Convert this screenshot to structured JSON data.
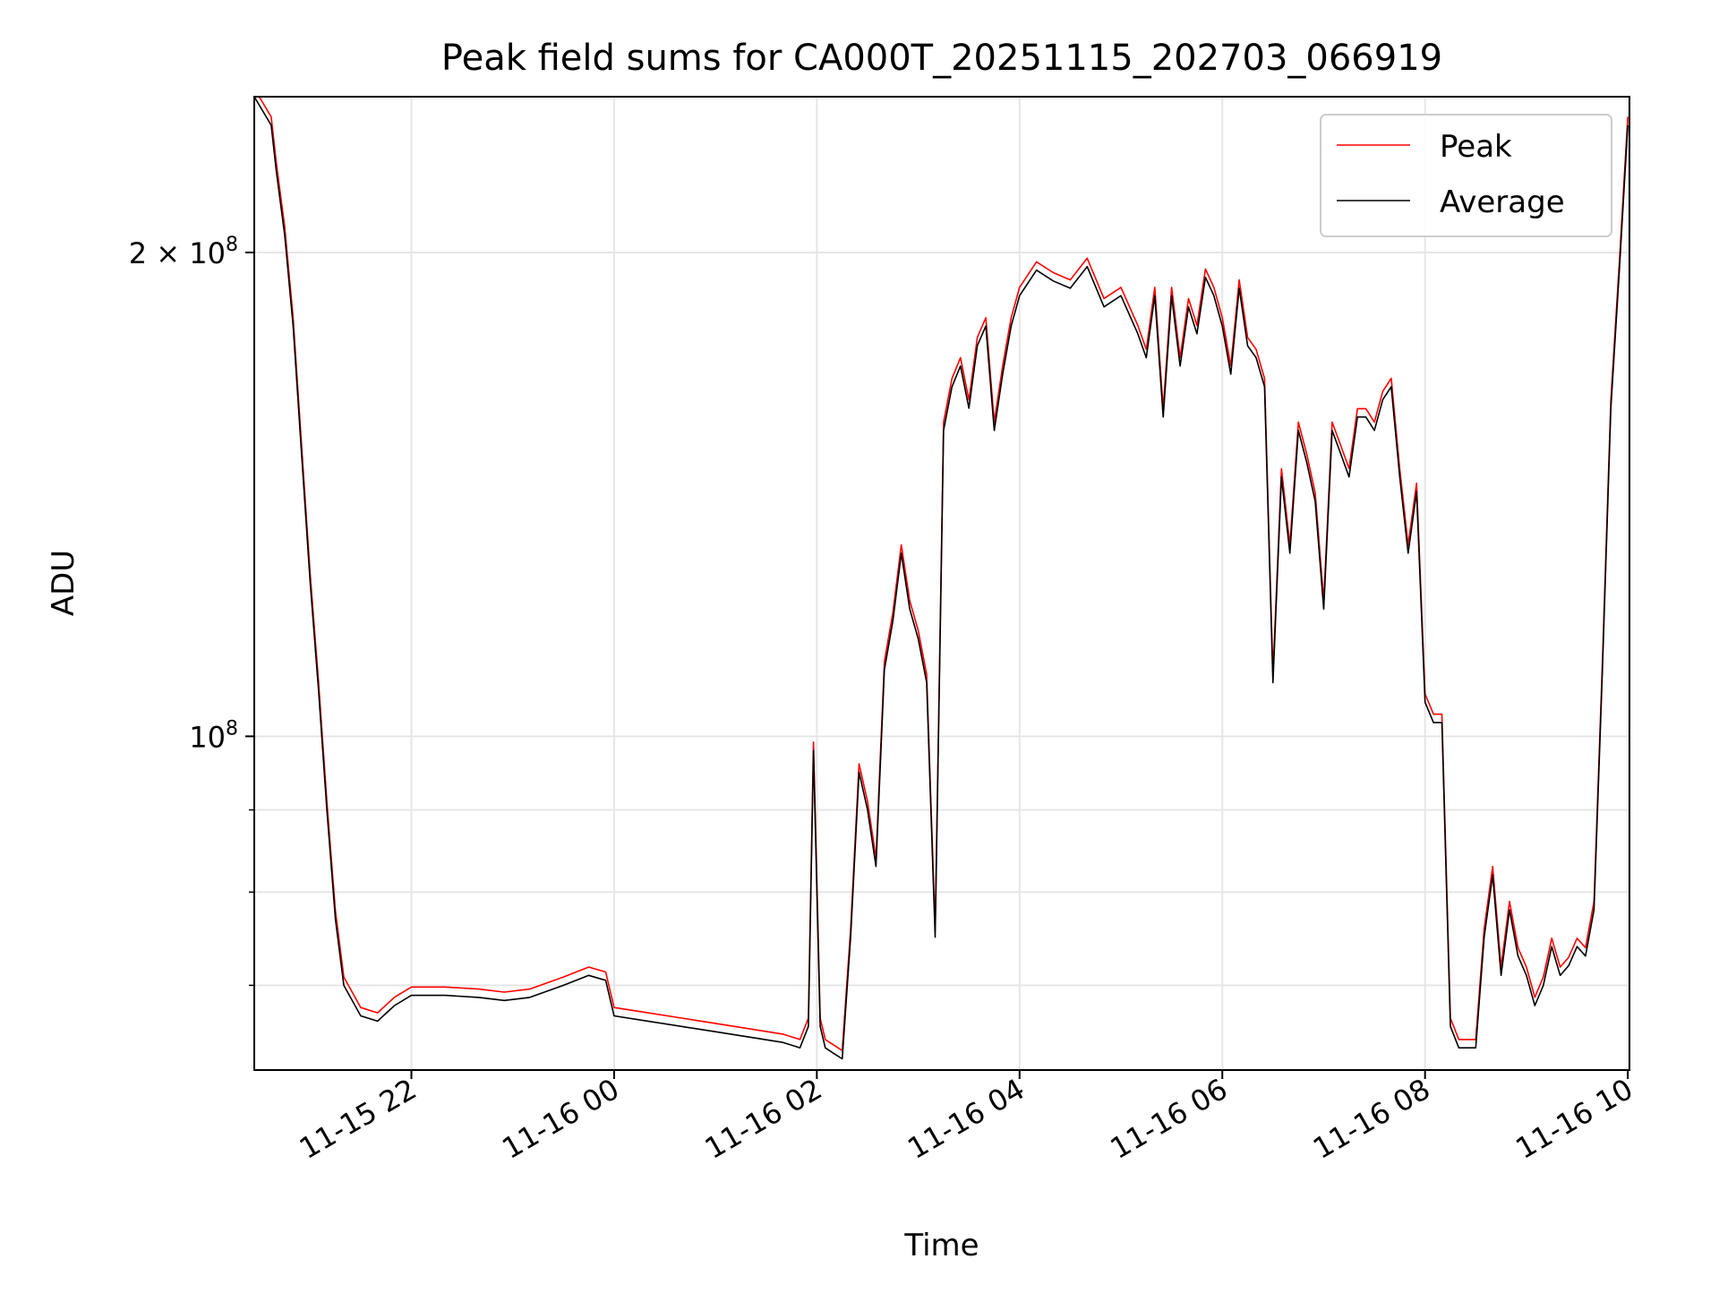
{
  "chart_data": {
    "type": "line",
    "title": "Peak field sums for CA000T_20251115_202703_066919",
    "xlabel": "Time",
    "ylabel": "ADU",
    "y_scale": "log",
    "ylim": [
      62000000,
      250000000
    ],
    "xlim": [
      "2025-11-15 20:27",
      "2025-11-16 10:01"
    ],
    "grid": true,
    "legend_position": "top-right",
    "x_tick_values": [
      "2025-11-15 22:00",
      "2025-11-16 00:00",
      "2025-11-16 02:00",
      "2025-11-16 04:00",
      "2025-11-16 06:00",
      "2025-11-16 08:00",
      "2025-11-16 10:00"
    ],
    "x_tick_labels": [
      "11-15 22",
      "11-16 00",
      "11-16 02",
      "11-16 04",
      "11-16 06",
      "11-16 08",
      "11-16 10"
    ],
    "y_ticks": [
      {
        "value": 100000000,
        "base": "10",
        "exp": "8"
      },
      {
        "value": 200000000,
        "mant": "2",
        "base": "10",
        "exp": "8"
      }
    ],
    "y_minor_ticks": [
      70000000,
      80000000,
      90000000
    ],
    "series": [
      {
        "name": "Peak",
        "color": "#ff0000",
        "offset": 0.012,
        "x": [
          "2025-11-15 20:27",
          "2025-11-15 20:37",
          "2025-11-15 20:40",
          "2025-11-15 20:45",
          "2025-11-15 20:50",
          "2025-11-15 20:55",
          "2025-11-15 21:00",
          "2025-11-15 21:05",
          "2025-11-15 21:10",
          "2025-11-15 21:15",
          "2025-11-15 21:20",
          "2025-11-15 21:30",
          "2025-11-15 21:40",
          "2025-11-15 21:50",
          "2025-11-15 22:00",
          "2025-11-15 22:20",
          "2025-11-15 22:40",
          "2025-11-15 22:55",
          "2025-11-15 23:10",
          "2025-11-15 23:30",
          "2025-11-15 23:45",
          "2025-11-15 23:55",
          "2025-11-16 00:00",
          "2025-11-16 00:20",
          "2025-11-16 00:40",
          "2025-11-16 01:00",
          "2025-11-16 01:20",
          "2025-11-16 01:40",
          "2025-11-16 01:50",
          "2025-11-16 01:55",
          "2025-11-16 01:58",
          "2025-11-16 02:02",
          "2025-11-16 02:05",
          "2025-11-16 02:10",
          "2025-11-16 02:15",
          "2025-11-16 02:20",
          "2025-11-16 02:25",
          "2025-11-16 02:30",
          "2025-11-16 02:35",
          "2025-11-16 02:40",
          "2025-11-16 02:45",
          "2025-11-16 02:50",
          "2025-11-16 02:55",
          "2025-11-16 03:00",
          "2025-11-16 03:05",
          "2025-11-16 03:10",
          "2025-11-16 03:15",
          "2025-11-16 03:20",
          "2025-11-16 03:25",
          "2025-11-16 03:30",
          "2025-11-16 03:35",
          "2025-11-16 03:40",
          "2025-11-16 03:45",
          "2025-11-16 03:50",
          "2025-11-16 03:55",
          "2025-11-16 04:00",
          "2025-11-16 04:10",
          "2025-11-16 04:20",
          "2025-11-16 04:30",
          "2025-11-16 04:40",
          "2025-11-16 04:50",
          "2025-11-16 05:00",
          "2025-11-16 05:10",
          "2025-11-16 05:15",
          "2025-11-16 05:20",
          "2025-11-16 05:25",
          "2025-11-16 05:30",
          "2025-11-16 05:35",
          "2025-11-16 05:40",
          "2025-11-16 05:45",
          "2025-11-16 05:50",
          "2025-11-16 05:55",
          "2025-11-16 06:00",
          "2025-11-16 06:05",
          "2025-11-16 06:10",
          "2025-11-16 06:15",
          "2025-11-16 06:20",
          "2025-11-16 06:25",
          "2025-11-16 06:30",
          "2025-11-16 06:35",
          "2025-11-16 06:40",
          "2025-11-16 06:45",
          "2025-11-16 06:50",
          "2025-11-16 06:55",
          "2025-11-16 07:00",
          "2025-11-16 07:05",
          "2025-11-16 07:10",
          "2025-11-16 07:15",
          "2025-11-16 07:20",
          "2025-11-16 07:25",
          "2025-11-16 07:30",
          "2025-11-16 07:35",
          "2025-11-16 07:40",
          "2025-11-16 07:45",
          "2025-11-16 07:50",
          "2025-11-16 07:55",
          "2025-11-16 08:00",
          "2025-11-16 08:05",
          "2025-11-16 08:10",
          "2025-11-16 08:15",
          "2025-11-16 08:20",
          "2025-11-16 08:30",
          "2025-11-16 08:35",
          "2025-11-16 08:40",
          "2025-11-16 08:45",
          "2025-11-16 08:50",
          "2025-11-16 08:55",
          "2025-11-16 09:00",
          "2025-11-16 09:05",
          "2025-11-16 09:10",
          "2025-11-16 09:15",
          "2025-11-16 09:20",
          "2025-11-16 09:25",
          "2025-11-16 09:30",
          "2025-11-16 09:35",
          "2025-11-16 09:40",
          "2025-11-16 09:45",
          "2025-11-16 09:50",
          "2025-11-16 09:55",
          "2025-11-16 10:00"
        ],
        "values": [
          250000000,
          240000000,
          225000000,
          205000000,
          180000000,
          150000000,
          125000000,
          107000000,
          90000000,
          77000000,
          70000000,
          67000000,
          66500000,
          68000000,
          69000000,
          69000000,
          68800000,
          68500000,
          68800000,
          70000000,
          71000000,
          70500000,
          67000000,
          66500000,
          66000000,
          65500000,
          65000000,
          64500000,
          64000000,
          66000000,
          98000000,
          66000000,
          64000000,
          63500000,
          63000000,
          75000000,
          95000000,
          90000000,
          83000000,
          110000000,
          118000000,
          130000000,
          120000000,
          115000000,
          108000000,
          75000000,
          155000000,
          165000000,
          170000000,
          160000000,
          175000000,
          180000000,
          155000000,
          168000000,
          180000000,
          188000000,
          195000000,
          192000000,
          190000000,
          196000000,
          185000000,
          188000000,
          178000000,
          172000000,
          188000000,
          158000000,
          188000000,
          170000000,
          185000000,
          178000000,
          193000000,
          188000000,
          180000000,
          168000000,
          190000000,
          175000000,
          172000000,
          165000000,
          108000000,
          145000000,
          130000000,
          155000000,
          148000000,
          140000000,
          120000000,
          155000000,
          150000000,
          145000000,
          158000000,
          158000000,
          155000000,
          162000000,
          165000000,
          145000000,
          130000000,
          142000000,
          105000000,
          102000000,
          102000000,
          66000000,
          64000000,
          64000000,
          75000000,
          82000000,
          71000000,
          78000000,
          73000000,
          71000000,
          68000000,
          70000000,
          74000000,
          71000000,
          72000000,
          74000000,
          73000000,
          78000000,
          110000000,
          160000000,
          195000000,
          240000000
        ]
      },
      {
        "name": "Average",
        "color": "#000000",
        "offset": 0,
        "x": [
          "2025-11-15 20:27",
          "2025-11-15 20:37",
          "2025-11-15 20:40",
          "2025-11-15 20:45",
          "2025-11-15 20:50",
          "2025-11-15 20:55",
          "2025-11-15 21:00",
          "2025-11-15 21:05",
          "2025-11-15 21:10",
          "2025-11-15 21:15",
          "2025-11-15 21:20",
          "2025-11-15 21:30",
          "2025-11-15 21:40",
          "2025-11-15 21:50",
          "2025-11-15 22:00",
          "2025-11-15 22:20",
          "2025-11-15 22:40",
          "2025-11-15 22:55",
          "2025-11-15 23:10",
          "2025-11-15 23:30",
          "2025-11-15 23:45",
          "2025-11-15 23:55",
          "2025-11-16 00:00",
          "2025-11-16 00:20",
          "2025-11-16 00:40",
          "2025-11-16 01:00",
          "2025-11-16 01:20",
          "2025-11-16 01:40",
          "2025-11-16 01:50",
          "2025-11-16 01:55",
          "2025-11-16 01:58",
          "2025-11-16 02:02",
          "2025-11-16 02:05",
          "2025-11-16 02:10",
          "2025-11-16 02:15",
          "2025-11-16 02:20",
          "2025-11-16 02:25",
          "2025-11-16 02:30",
          "2025-11-16 02:35",
          "2025-11-16 02:40",
          "2025-11-16 02:45",
          "2025-11-16 02:50",
          "2025-11-16 02:55",
          "2025-11-16 03:00",
          "2025-11-16 03:05",
          "2025-11-16 03:10",
          "2025-11-16 03:15",
          "2025-11-16 03:20",
          "2025-11-16 03:25",
          "2025-11-16 03:30",
          "2025-11-16 03:35",
          "2025-11-16 03:40",
          "2025-11-16 03:45",
          "2025-11-16 03:50",
          "2025-11-16 03:55",
          "2025-11-16 04:00",
          "2025-11-16 04:10",
          "2025-11-16 04:20",
          "2025-11-16 04:30",
          "2025-11-16 04:40",
          "2025-11-16 04:50",
          "2025-11-16 05:00",
          "2025-11-16 05:10",
          "2025-11-16 05:15",
          "2025-11-16 05:20",
          "2025-11-16 05:25",
          "2025-11-16 05:30",
          "2025-11-16 05:35",
          "2025-11-16 05:40",
          "2025-11-16 05:45",
          "2025-11-16 05:50",
          "2025-11-16 05:55",
          "2025-11-16 06:00",
          "2025-11-16 06:05",
          "2025-11-16 06:10",
          "2025-11-16 06:15",
          "2025-11-16 06:20",
          "2025-11-16 06:25",
          "2025-11-16 06:30",
          "2025-11-16 06:35",
          "2025-11-16 06:40",
          "2025-11-16 06:45",
          "2025-11-16 06:50",
          "2025-11-16 06:55",
          "2025-11-16 07:00",
          "2025-11-16 07:05",
          "2025-11-16 07:10",
          "2025-11-16 07:15",
          "2025-11-16 07:20",
          "2025-11-16 07:25",
          "2025-11-16 07:30",
          "2025-11-16 07:35",
          "2025-11-16 07:40",
          "2025-11-16 07:45",
          "2025-11-16 07:50",
          "2025-11-16 07:55",
          "2025-11-16 08:00",
          "2025-11-16 08:05",
          "2025-11-16 08:10",
          "2025-11-16 08:15",
          "2025-11-16 08:20",
          "2025-11-16 08:30",
          "2025-11-16 08:35",
          "2025-11-16 08:40",
          "2025-11-16 08:45",
          "2025-11-16 08:50",
          "2025-11-16 08:55",
          "2025-11-16 09:00",
          "2025-11-16 09:05",
          "2025-11-16 09:10",
          "2025-11-16 09:15",
          "2025-11-16 09:20",
          "2025-11-16 09:25",
          "2025-11-16 09:30",
          "2025-11-16 09:35",
          "2025-11-16 09:40",
          "2025-11-16 09:45",
          "2025-11-16 09:50",
          "2025-11-16 09:55",
          "2025-11-16 10:00"
        ],
        "values": [
          250000000,
          240000000,
          225000000,
          205000000,
          180000000,
          150000000,
          125000000,
          107000000,
          90000000,
          77000000,
          70000000,
          67000000,
          66500000,
          68000000,
          69000000,
          69000000,
          68800000,
          68500000,
          68800000,
          70000000,
          71000000,
          70500000,
          67000000,
          66500000,
          66000000,
          65500000,
          65000000,
          64500000,
          64000000,
          66000000,
          98000000,
          66000000,
          64000000,
          63500000,
          63000000,
          75000000,
          95000000,
          90000000,
          83000000,
          110000000,
          118000000,
          130000000,
          120000000,
          115000000,
          108000000,
          75000000,
          155000000,
          165000000,
          170000000,
          160000000,
          175000000,
          180000000,
          155000000,
          168000000,
          180000000,
          188000000,
          195000000,
          192000000,
          190000000,
          196000000,
          185000000,
          188000000,
          178000000,
          172000000,
          188000000,
          158000000,
          188000000,
          170000000,
          185000000,
          178000000,
          193000000,
          188000000,
          180000000,
          168000000,
          190000000,
          175000000,
          172000000,
          165000000,
          108000000,
          145000000,
          130000000,
          155000000,
          148000000,
          140000000,
          120000000,
          155000000,
          150000000,
          145000000,
          158000000,
          158000000,
          155000000,
          162000000,
          165000000,
          145000000,
          130000000,
          142000000,
          105000000,
          102000000,
          102000000,
          66000000,
          64000000,
          64000000,
          75000000,
          82000000,
          71000000,
          78000000,
          73000000,
          71000000,
          68000000,
          70000000,
          74000000,
          71000000,
          72000000,
          74000000,
          73000000,
          78000000,
          110000000,
          160000000,
          195000000,
          240000000
        ]
      }
    ]
  }
}
